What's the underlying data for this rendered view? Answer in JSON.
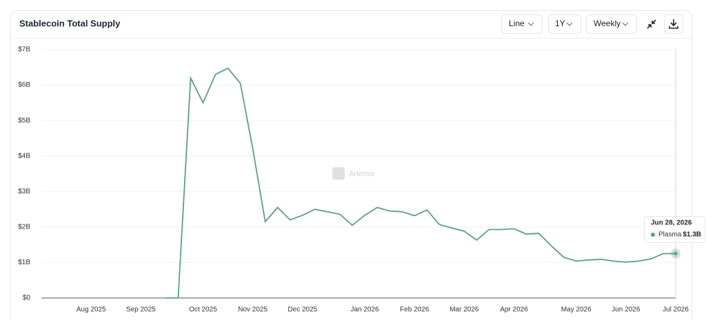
{
  "controls": {
    "chart_type": "Line",
    "range": "1Y",
    "interval": "Weekly"
  },
  "watermark": "Artemis",
  "chart_data": {
    "type": "line",
    "title": "Stablecoin Total Supply",
    "categories": [
      null,
      null,
      null,
      null,
      "Aug 2025",
      null,
      null,
      null,
      "Sep 2025",
      null,
      null,
      null,
      null,
      "Oct 2025",
      null,
      null,
      null,
      "Nov 2025",
      null,
      null,
      null,
      "Dec 2025",
      null,
      null,
      null,
      null,
      "Jan 2026",
      null,
      null,
      null,
      "Feb 2026",
      null,
      null,
      null,
      "Mar 2026",
      null,
      null,
      null,
      "Apr 2026",
      null,
      null,
      null,
      null,
      "May 2026",
      null,
      null,
      null,
      "Jun 2026",
      null,
      null,
      null,
      "Jul 2026"
    ],
    "series": [
      {
        "name": "Plasma",
        "color": "#5c9f82",
        "values": [
          null,
          null,
          null,
          null,
          null,
          null,
          null,
          null,
          null,
          null,
          0,
          0,
          6.2,
          5.5,
          6.3,
          6.47,
          6.05,
          4.2,
          2.15,
          2.55,
          2.2,
          2.33,
          2.5,
          2.43,
          2.36,
          2.05,
          2.33,
          2.55,
          2.45,
          2.43,
          2.32,
          2.48,
          2.07,
          1.97,
          1.88,
          1.63,
          1.93,
          1.93,
          1.95,
          1.8,
          1.82,
          1.47,
          1.15,
          1.04,
          1.07,
          1.09,
          1.04,
          1.01,
          1.04,
          1.1,
          1.25,
          1.25
        ]
      }
    ],
    "ylim": [
      0,
      7
    ],
    "yticks": [
      {
        "value": 0,
        "label": "$0"
      },
      {
        "value": 1,
        "label": "$1B"
      },
      {
        "value": 2,
        "label": "$2B"
      },
      {
        "value": 3,
        "label": "$3B"
      },
      {
        "value": 4,
        "label": "$4B"
      },
      {
        "value": 5,
        "label": "$5B"
      },
      {
        "value": 6,
        "label": "$6B"
      },
      {
        "value": 7,
        "label": "$7B"
      }
    ],
    "grid": true,
    "tooltip": {
      "date": "Jun 28, 2026",
      "value_label": "$1.3B"
    }
  }
}
